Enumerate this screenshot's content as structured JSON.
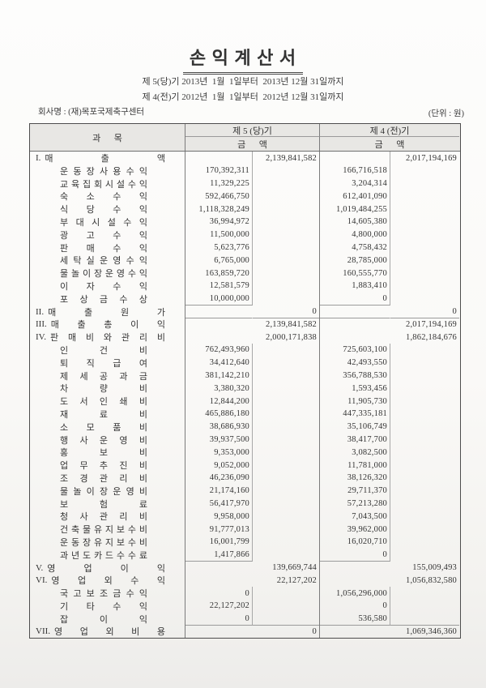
{
  "title": "손 익 계 산 서",
  "period_lines": [
    "제 5(당)기 2013년  1월  1일부터  2013년 12월 31일까지",
    "제 4(전)기 2012년  1월  1일부터  2012년 12월 31일까지"
  ],
  "company_label": "회사명 : (재)목포국제축구센터",
  "unit_label": "(단위 : 원)",
  "colors": {
    "paper": "#faf9f7",
    "header_fill": "#e8e7e4",
    "border_dark": "#4d4d4d",
    "grid_line": "#7b7b7b",
    "text": "#2f2f2f"
  },
  "table": {
    "col_account": "과      목",
    "col_p5": "제 5 (당)기",
    "col_p4": "제 4 (전)기",
    "col_amount": "금      액",
    "rows": [
      {
        "kind": "sec",
        "prefix": "I.",
        "label": "매 출 액",
        "p5d": "",
        "p5t": "2,139,841,582",
        "p4d": "",
        "p4t": "2,017,194,169",
        "sub": true,
        "rule": ""
      },
      {
        "kind": "det",
        "prefix": "",
        "label": "운 동 장 사 용 수 익",
        "p5d": "170,392,311",
        "p5t": "",
        "p4d": "166,716,518",
        "p4t": "",
        "sub": true,
        "rule": ""
      },
      {
        "kind": "det",
        "prefix": "",
        "label": "교 육 집 회 시 설 수 익",
        "p5d": "11,329,225",
        "p5t": "",
        "p4d": "3,204,314",
        "p4t": "",
        "sub": true,
        "rule": ""
      },
      {
        "kind": "det",
        "prefix": "",
        "label": "숙 소 수 익",
        "p5d": "592,466,750",
        "p5t": "",
        "p4d": "612,401,090",
        "p4t": "",
        "sub": true,
        "rule": ""
      },
      {
        "kind": "det",
        "prefix": "",
        "label": "식 당 수 익",
        "p5d": "1,118,328,249",
        "p5t": "",
        "p4d": "1,019,484,255",
        "p4t": "",
        "sub": true,
        "rule": ""
      },
      {
        "kind": "det",
        "prefix": "",
        "label": "부 대 시 설 수 익",
        "p5d": "36,994,972",
        "p5t": "",
        "p4d": "14,605,380",
        "p4t": "",
        "sub": true,
        "rule": ""
      },
      {
        "kind": "det",
        "prefix": "",
        "label": "광 고 수 익",
        "p5d": "11,500,000",
        "p5t": "",
        "p4d": "4,800,000",
        "p4t": "",
        "sub": true,
        "rule": ""
      },
      {
        "kind": "det",
        "prefix": "",
        "label": "판 매 수 익",
        "p5d": "5,623,776",
        "p5t": "",
        "p4d": "4,758,432",
        "p4t": "",
        "sub": true,
        "rule": ""
      },
      {
        "kind": "det",
        "prefix": "",
        "label": "세 탁 실 운 영 수 익",
        "p5d": "6,765,000",
        "p5t": "",
        "p4d": "28,785,000",
        "p4t": "",
        "sub": true,
        "rule": ""
      },
      {
        "kind": "det",
        "prefix": "",
        "label": "물 놀 이 장 운 영 수 익",
        "p5d": "163,859,720",
        "p5t": "",
        "p4d": "160,555,770",
        "p4t": "",
        "sub": true,
        "rule": ""
      },
      {
        "kind": "det",
        "prefix": "",
        "label": "이 자 수 익",
        "p5d": "12,581,579",
        "p5t": "",
        "p4d": "1,883,410",
        "p4t": "",
        "sub": true,
        "rule": ""
      },
      {
        "kind": "det",
        "prefix": "",
        "label": "포 상 금 수 상",
        "p5d": "10,000,000",
        "p5t": "",
        "p4d": "0",
        "p4t": "",
        "sub": true,
        "rule": "detail"
      },
      {
        "kind": "sec",
        "prefix": "II.",
        "label": "매 출 원 가",
        "p5d": "",
        "p5t": "0",
        "p4d": "",
        "p4t": "0",
        "sub": false,
        "rule": "full"
      },
      {
        "kind": "sec",
        "prefix": "III.",
        "label": "매 출 총 이 익",
        "p5d": "",
        "p5t": "2,139,841,582",
        "p4d": "",
        "p4t": "2,017,194,169",
        "sub": false,
        "rule": ""
      },
      {
        "kind": "sec",
        "prefix": "IV.",
        "label": "판 매 비 와 관 리 비",
        "p5d": "",
        "p5t": "2,000,171,838",
        "p4d": "",
        "p4t": "1,862,184,676",
        "sub": false,
        "rule": ""
      },
      {
        "kind": "det",
        "prefix": "",
        "label": "인 건 비",
        "p5d": "762,493,960",
        "p5t": "",
        "p4d": "725,603,100",
        "p4t": "",
        "sub": true,
        "rule": ""
      },
      {
        "kind": "det",
        "prefix": "",
        "label": "퇴 직 급 여",
        "p5d": "34,412,640",
        "p5t": "",
        "p4d": "42,493,550",
        "p4t": "",
        "sub": true,
        "rule": ""
      },
      {
        "kind": "det",
        "prefix": "",
        "label": "제 세 공 과 금",
        "p5d": "381,142,210",
        "p5t": "",
        "p4d": "356,788,530",
        "p4t": "",
        "sub": true,
        "rule": ""
      },
      {
        "kind": "det",
        "prefix": "",
        "label": "차 량 비",
        "p5d": "3,380,320",
        "p5t": "",
        "p4d": "1,593,456",
        "p4t": "",
        "sub": true,
        "rule": ""
      },
      {
        "kind": "det",
        "prefix": "",
        "label": "도 서 인 쇄 비",
        "p5d": "12,844,200",
        "p5t": "",
        "p4d": "11,905,730",
        "p4t": "",
        "sub": true,
        "rule": ""
      },
      {
        "kind": "det",
        "prefix": "",
        "label": "재 료 비",
        "p5d": "465,886,180",
        "p5t": "",
        "p4d": "447,335,181",
        "p4t": "",
        "sub": true,
        "rule": ""
      },
      {
        "kind": "det",
        "prefix": "",
        "label": "소 모 품 비",
        "p5d": "38,686,930",
        "p5t": "",
        "p4d": "35,106,749",
        "p4t": "",
        "sub": true,
        "rule": ""
      },
      {
        "kind": "det",
        "prefix": "",
        "label": "행 사 운 영 비",
        "p5d": "39,937,500",
        "p5t": "",
        "p4d": "38,417,700",
        "p4t": "",
        "sub": true,
        "rule": ""
      },
      {
        "kind": "det",
        "prefix": "",
        "label": "홍 보 비",
        "p5d": "9,353,000",
        "p5t": "",
        "p4d": "3,082,500",
        "p4t": "",
        "sub": true,
        "rule": ""
      },
      {
        "kind": "det",
        "prefix": "",
        "label": "업 무 추 진 비",
        "p5d": "9,052,000",
        "p5t": "",
        "p4d": "11,781,000",
        "p4t": "",
        "sub": true,
        "rule": ""
      },
      {
        "kind": "det",
        "prefix": "",
        "label": "조 경 관 리 비",
        "p5d": "46,236,090",
        "p5t": "",
        "p4d": "38,126,320",
        "p4t": "",
        "sub": true,
        "rule": ""
      },
      {
        "kind": "det",
        "prefix": "",
        "label": "물 놀 이 장 운 영 비",
        "p5d": "21,174,160",
        "p5t": "",
        "p4d": "29,711,370",
        "p4t": "",
        "sub": true,
        "rule": ""
      },
      {
        "kind": "det",
        "prefix": "",
        "label": "보 험 료",
        "p5d": "56,417,970",
        "p5t": "",
        "p4d": "57,213,280",
        "p4t": "",
        "sub": true,
        "rule": ""
      },
      {
        "kind": "det",
        "prefix": "",
        "label": "청 사 관 리 비",
        "p5d": "9,958,000",
        "p5t": "",
        "p4d": "7,043,500",
        "p4t": "",
        "sub": true,
        "rule": ""
      },
      {
        "kind": "det",
        "prefix": "",
        "label": "건 축 물 유 지 보 수 비",
        "p5d": "91,777,013",
        "p5t": "",
        "p4d": "39,962,000",
        "p4t": "",
        "sub": true,
        "rule": ""
      },
      {
        "kind": "det",
        "prefix": "",
        "label": "운 동 장 유 지 보 수 비",
        "p5d": "16,001,799",
        "p5t": "",
        "p4d": "16,020,710",
        "p4t": "",
        "sub": true,
        "rule": ""
      },
      {
        "kind": "det",
        "prefix": "",
        "label": "과 년 도 카 드 수 수 료",
        "p5d": "1,417,866",
        "p5t": "",
        "p4d": "0",
        "p4t": "",
        "sub": true,
        "rule": "detail"
      },
      {
        "kind": "sec",
        "prefix": "V.",
        "label": "영 업 이 익",
        "p5d": "",
        "p5t": "139,669,744",
        "p4d": "",
        "p4t": "155,009,493",
        "sub": false,
        "rule": ""
      },
      {
        "kind": "sec",
        "prefix": "VI.",
        "label": "영 업 외 수 익",
        "p5d": "",
        "p5t": "22,127,202",
        "p4d": "",
        "p4t": "1,056,832,580",
        "sub": false,
        "rule": ""
      },
      {
        "kind": "det",
        "prefix": "",
        "label": "국 고 보 조 금 수 익",
        "p5d": "0",
        "p5t": "",
        "p4d": "1,056,296,000",
        "p4t": "",
        "sub": true,
        "rule": ""
      },
      {
        "kind": "det",
        "prefix": "",
        "label": "기 타 수 익",
        "p5d": "22,127,202",
        "p5t": "",
        "p4d": "0",
        "p4t": "",
        "sub": true,
        "rule": ""
      },
      {
        "kind": "det",
        "prefix": "",
        "label": "잡 이 익",
        "p5d": "0",
        "p5t": "",
        "p4d": "536,580",
        "p4t": "",
        "sub": true,
        "rule": "full"
      },
      {
        "kind": "sec",
        "prefix": "VII.",
        "label": "영 업 외 비 용",
        "p5d": "",
        "p5t": "0",
        "p4d": "",
        "p4t": "1,069,346,360",
        "sub": false,
        "rule": ""
      }
    ]
  }
}
